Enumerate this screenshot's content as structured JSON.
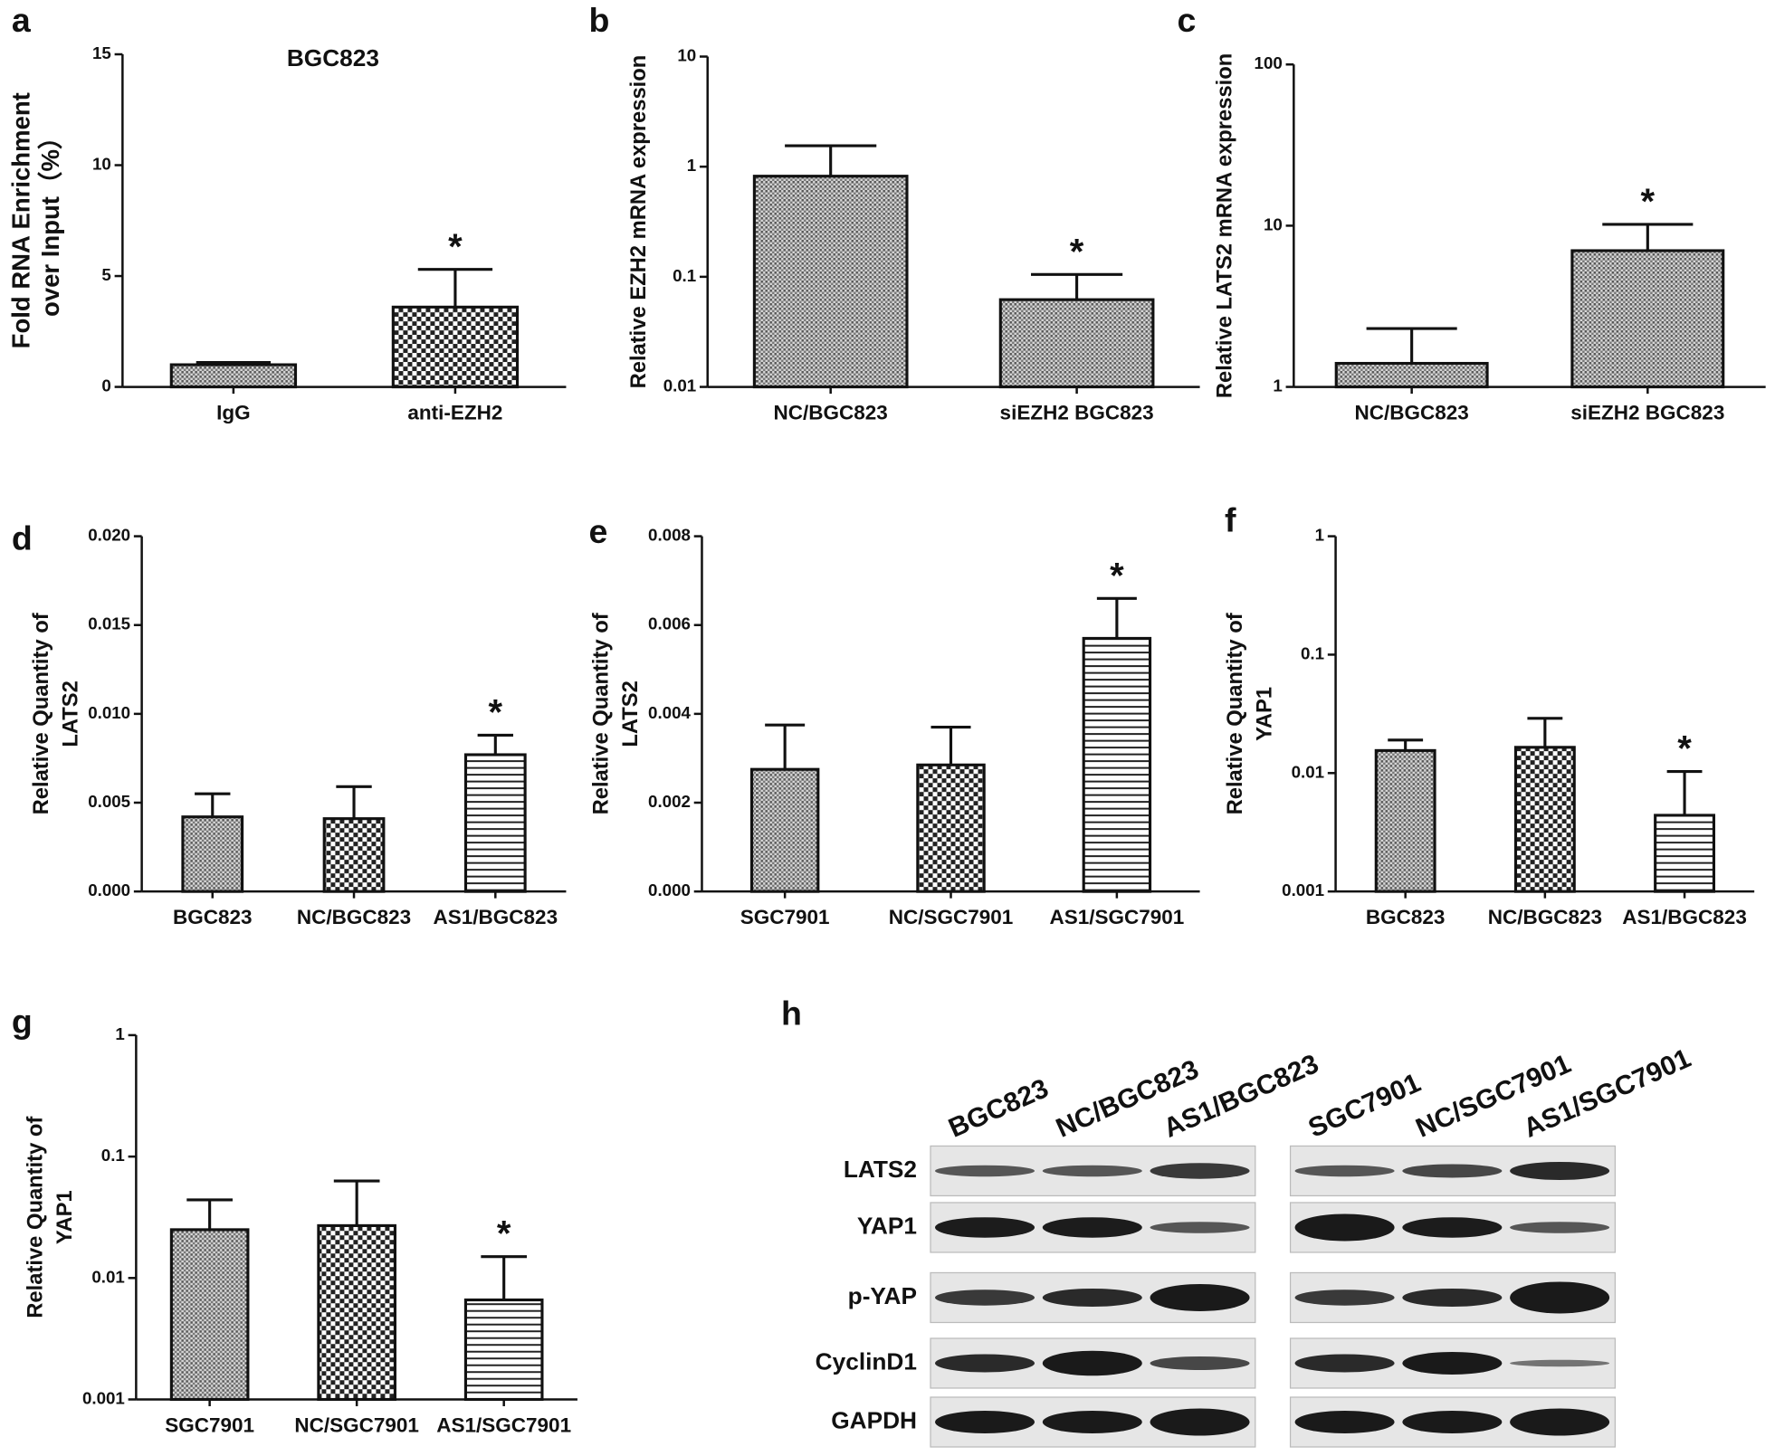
{
  "chart_data": [
    {
      "panel": "a",
      "type": "bar",
      "title": "BGC823",
      "ylabel": [
        "Fold RNA Enrichment",
        "over Input（%）"
      ],
      "categories": [
        "IgG",
        "anti-EZH2"
      ],
      "values": [
        1.0,
        3.6
      ],
      "errors": [
        0.1,
        1.7
      ],
      "patterns": [
        "dots",
        "checker"
      ],
      "ylim": [
        0,
        15
      ],
      "yticks": [
        0,
        5,
        10,
        15
      ],
      "log": false,
      "annotations": [
        {
          "text": "*",
          "x": "anti-EZH2"
        }
      ]
    },
    {
      "panel": "b",
      "type": "bar",
      "ylabel": [
        "Relative EZH2 mRNA expression"
      ],
      "categories": [
        "NC/BGC823",
        "siEZH2 BGC823"
      ],
      "values": [
        0.82,
        0.062
      ],
      "errors": [
        0.73,
        0.043
      ],
      "patterns": [
        "dots",
        "dots"
      ],
      "ylim": [
        0.01,
        10
      ],
      "yticks": [
        0.01,
        0.1,
        1,
        10
      ],
      "log": true,
      "annotations": [
        {
          "text": "*",
          "x": "siEZH2 BGC823"
        }
      ]
    },
    {
      "panel": "c",
      "type": "bar",
      "ylabel": [
        "Relative LATS2 mRNA expression"
      ],
      "categories": [
        "NC/BGC823",
        "siEZH2 BGC823"
      ],
      "values": [
        1.4,
        7.0
      ],
      "errors": [
        0.9,
        3.2
      ],
      "patterns": [
        "dots",
        "dots"
      ],
      "ylim": [
        1,
        100
      ],
      "yticks": [
        1,
        10,
        100
      ],
      "log": true,
      "annotations": [
        {
          "text": "*",
          "x": "siEZH2 BGC823"
        }
      ]
    },
    {
      "panel": "d",
      "type": "bar",
      "ylabel": [
        "Relative Quantity of",
        "LATS2"
      ],
      "categories": [
        "BGC823",
        "NC/BGC823",
        "AS1/BGC823"
      ],
      "values": [
        0.0042,
        0.0041,
        0.0077
      ],
      "errors": [
        0.0013,
        0.0018,
        0.0011
      ],
      "patterns": [
        "dots",
        "checker",
        "hlines"
      ],
      "ylim": [
        0,
        0.02
      ],
      "yticks": [
        {
          "value": 0,
          "label": "0.000"
        },
        {
          "value": 0.005,
          "label": "0.005"
        },
        {
          "value": 0.01,
          "label": "0.010"
        },
        {
          "value": 0.015,
          "label": "0.015"
        },
        {
          "value": 0.02,
          "label": "0.020"
        }
      ],
      "log": false,
      "annotations": [
        {
          "text": "*",
          "x": "AS1/BGC823"
        }
      ]
    },
    {
      "panel": "e",
      "type": "bar",
      "ylabel": [
        "Relative Quantity of",
        "LATS2"
      ],
      "categories": [
        "SGC7901",
        "NC/SGC7901",
        "AS1/SGC7901"
      ],
      "values": [
        0.00275,
        0.00285,
        0.0057
      ],
      "errors": [
        0.001,
        0.00085,
        0.0009
      ],
      "patterns": [
        "dots",
        "checker",
        "hlines"
      ],
      "ylim": [
        0,
        0.008
      ],
      "yticks": [
        {
          "value": 0,
          "label": "0.000"
        },
        {
          "value": 0.002,
          "label": "0.002"
        },
        {
          "value": 0.004,
          "label": "0.004"
        },
        {
          "value": 0.006,
          "label": "0.006"
        },
        {
          "value": 0.008,
          "label": "0.008"
        }
      ],
      "log": false,
      "annotations": [
        {
          "text": "*",
          "x": "AS1/SGC7901"
        }
      ]
    },
    {
      "panel": "f",
      "type": "bar",
      "ylabel": [
        "Relative Quantity of",
        "YAP1"
      ],
      "categories": [
        "BGC823",
        "NC/BGC823",
        "AS1/BGC823"
      ],
      "values": [
        0.0155,
        0.0165,
        0.0044
      ],
      "errors": [
        0.0035,
        0.0125,
        0.0059
      ],
      "patterns": [
        "dots",
        "checker",
        "hlines"
      ],
      "ylim": [
        0.001,
        1
      ],
      "yticks": [
        0.001,
        0.01,
        0.1,
        1
      ],
      "log": true,
      "annotations": [
        {
          "text": "*",
          "x": "AS1/BGC823"
        }
      ]
    },
    {
      "panel": "g",
      "type": "bar",
      "ylabel": [
        "Relative Quantity of",
        "YAP1"
      ],
      "categories": [
        "SGC7901",
        "NC/SGC7901",
        "AS1/SGC7901"
      ],
      "values": [
        0.025,
        0.027,
        0.0066
      ],
      "errors": [
        0.019,
        0.036,
        0.0084
      ],
      "patterns": [
        "dots",
        "checker",
        "hlines"
      ],
      "ylim": [
        0.001,
        1
      ],
      "yticks": [
        0.001,
        0.01,
        0.1,
        1
      ],
      "log": true,
      "annotations": [
        {
          "text": "*",
          "x": "AS1/SGC7901"
        }
      ]
    }
  ],
  "blot": {
    "panel": "h",
    "lanes": [
      [
        "BGC823",
        "NC/BGC823",
        "AS1/BGC823"
      ],
      [
        "SGC7901",
        "NC/SGC7901",
        "AS1/SGC7901"
      ]
    ],
    "proteins": [
      "LATS2",
      "YAP1",
      "p-YAP",
      "CyclinD1",
      "GAPDH"
    ]
  }
}
